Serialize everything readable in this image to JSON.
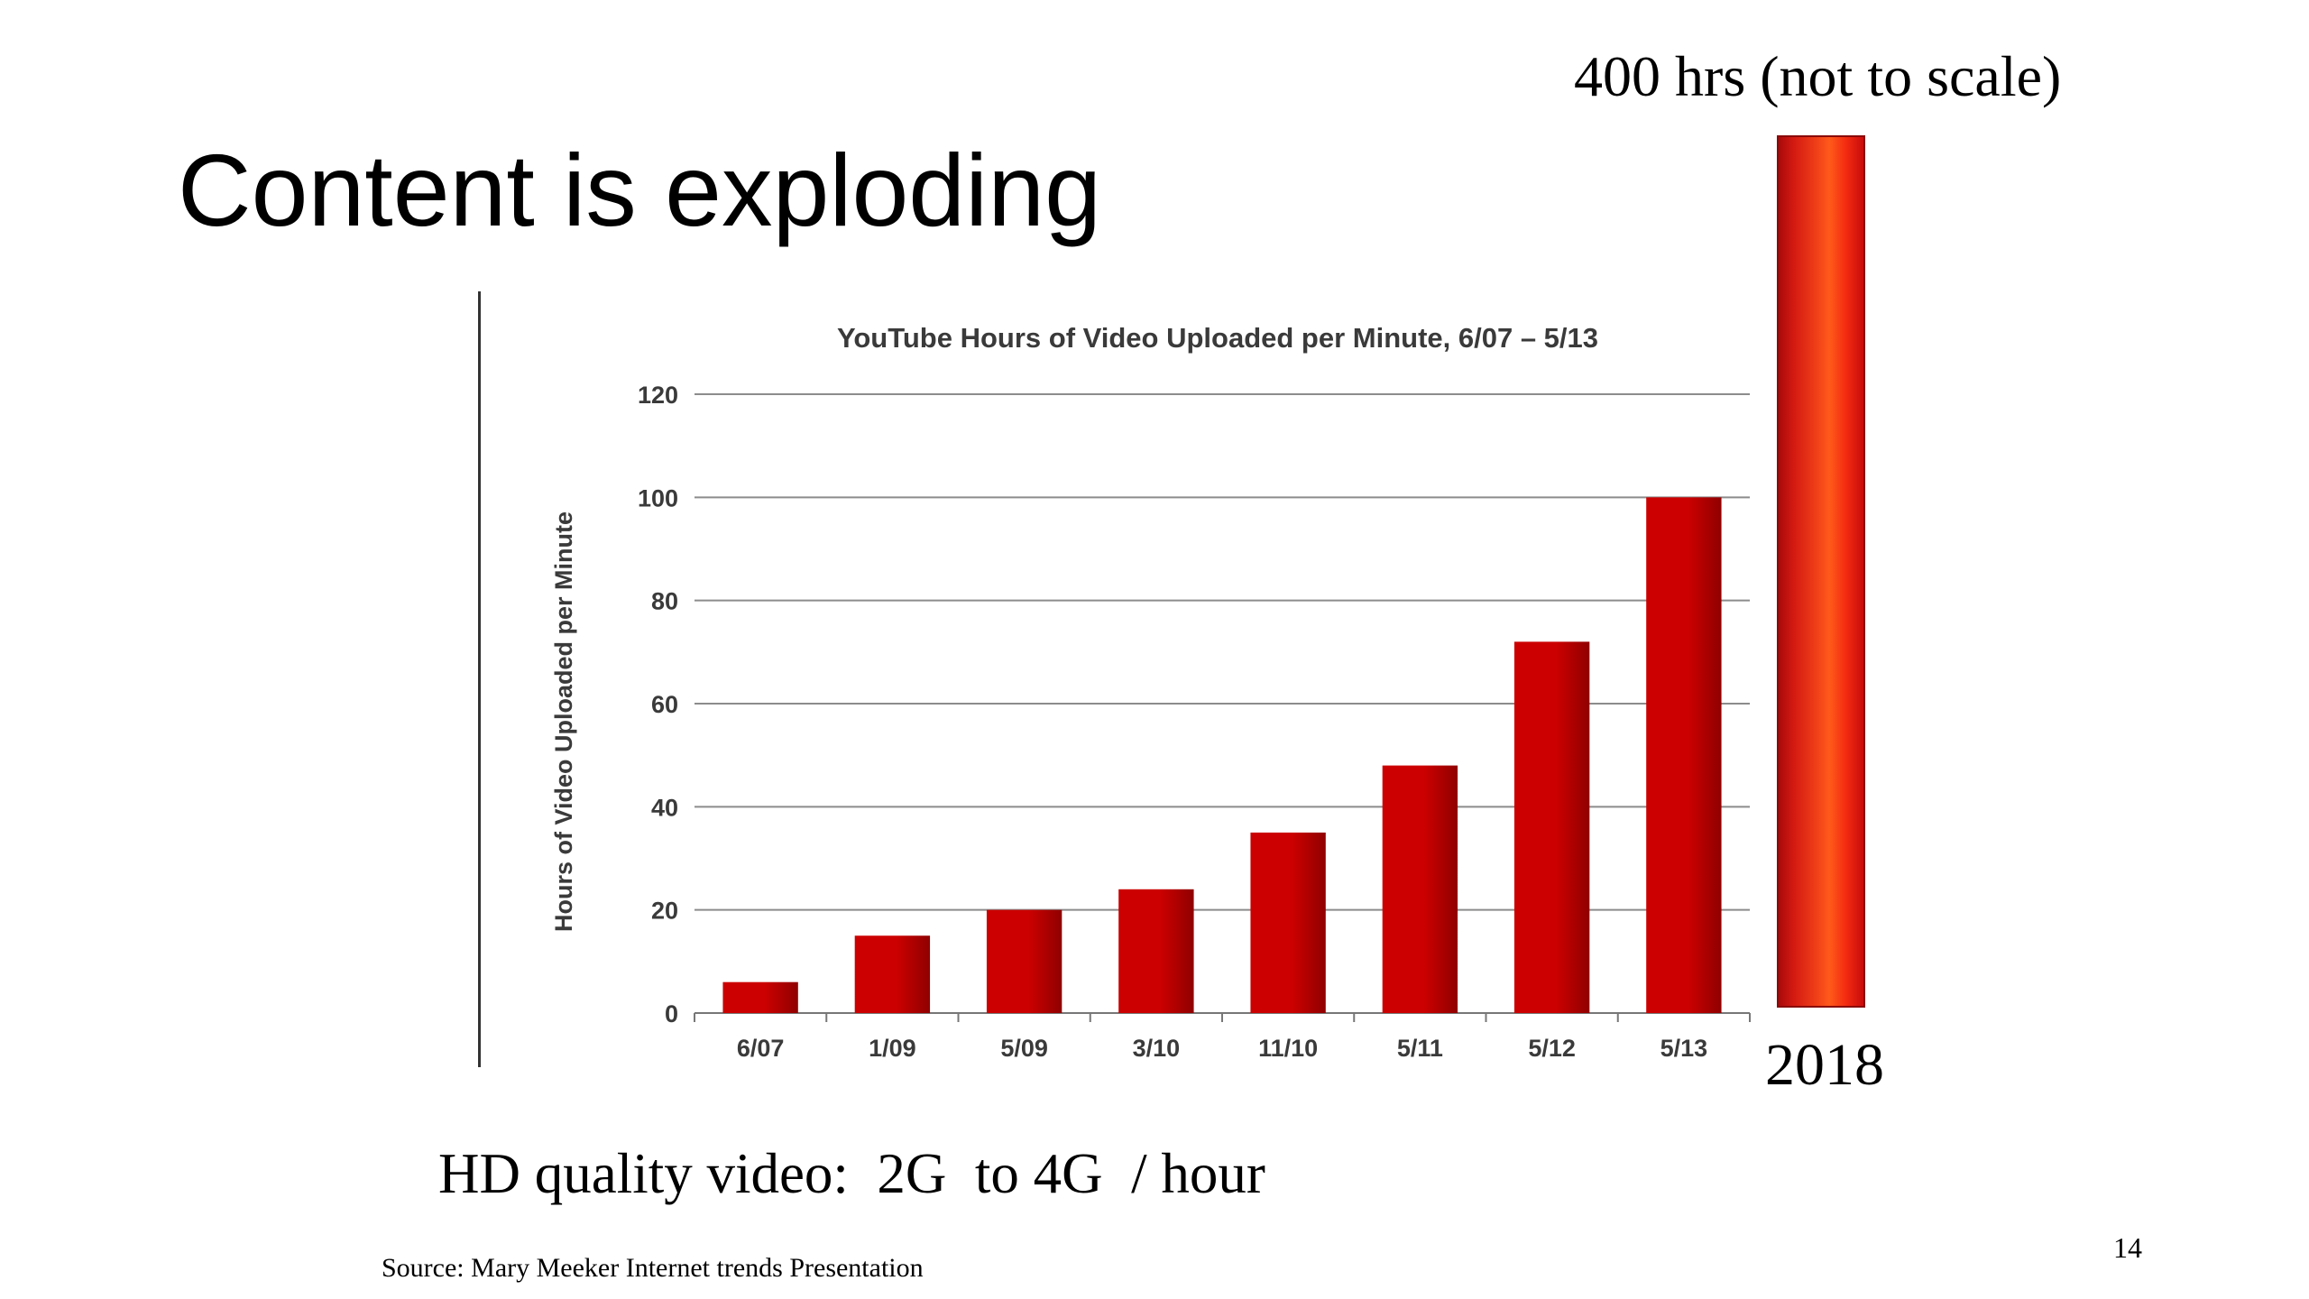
{
  "slide": {
    "title": "Content is exploding",
    "callout_label": "400 hrs (not to scale)",
    "callout_year": "2018",
    "hd_note": "HD quality video:  2G  to 4G  / hour",
    "source": "Source: Mary Meeker Internet trends Presentation",
    "page_number": "14"
  },
  "colors": {
    "bar": "#cc0000",
    "bar_dark": "#8f0000",
    "grid": "#8c8c8c",
    "text": "#3a3a3a"
  },
  "chart_data": {
    "type": "bar",
    "title": "YouTube Hours of Video Uploaded per Minute, 6/07 – 5/13",
    "xlabel": "",
    "ylabel": "Hours of Video Uploaded per Minute",
    "categories": [
      "6/07",
      "1/09",
      "5/09",
      "3/10",
      "11/10",
      "5/11",
      "5/12",
      "5/13"
    ],
    "values": [
      6,
      15,
      20,
      24,
      35,
      48,
      72,
      100
    ],
    "ylim": [
      0,
      120
    ],
    "yticks": [
      "0",
      "20",
      "40",
      "60",
      "80",
      "100",
      "120"
    ],
    "grid": true,
    "legend": "none"
  }
}
